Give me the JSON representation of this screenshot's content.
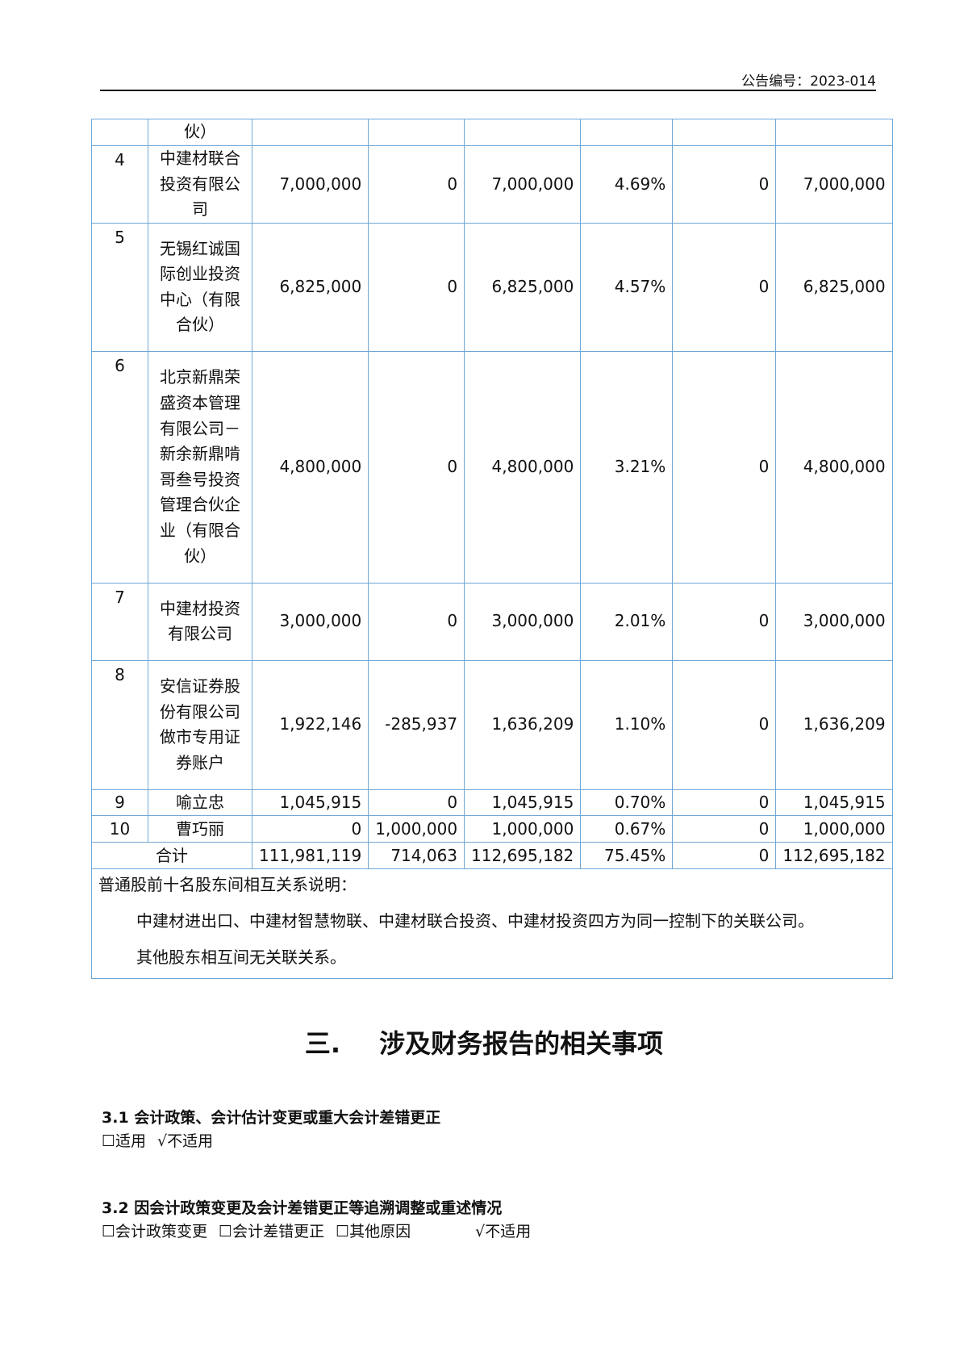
{
  "header": {
    "announcement_no": "公告编号：2023-014"
  },
  "table": {
    "rows": [
      {
        "no": "",
        "name": "伙）",
        "c1": "",
        "c2": "",
        "c3": "",
        "c4": "",
        "c5": "",
        "c6": ""
      },
      {
        "no": "4",
        "name": "中建材联合投资有限公司",
        "c1": "7,000,000",
        "c2": "0",
        "c3": "7,000,000",
        "c4": "4.69%",
        "c5": "0",
        "c6": "7,000,000"
      },
      {
        "no": "5",
        "name": "无锡红诚国际创业投资中心（有限合伙）",
        "c1": "6,825,000",
        "c2": "0",
        "c3": "6,825,000",
        "c4": "4.57%",
        "c5": "0",
        "c6": "6,825,000"
      },
      {
        "no": "6",
        "name": "北京新鼎荣盛资本管理有限公司－新余新鼎啃哥叁号投资管理合伙企业（有限合伙）",
        "c1": "4,800,000",
        "c2": "0",
        "c3": "4,800,000",
        "c4": "3.21%",
        "c5": "0",
        "c6": "4,800,000"
      },
      {
        "no": "7",
        "name": "中建材投资有限公司",
        "c1": "3,000,000",
        "c2": "0",
        "c3": "3,000,000",
        "c4": "2.01%",
        "c5": "0",
        "c6": "3,000,000"
      },
      {
        "no": "8",
        "name": "安信证券股份有限公司做市专用证券账户",
        "c1": "1,922,146",
        "c2": "-285,937",
        "c3": "1,636,209",
        "c4": "1.10%",
        "c5": "0",
        "c6": "1,636,209"
      },
      {
        "no": "9",
        "name": "喻立忠",
        "c1": "1,045,915",
        "c2": "0",
        "c3": "1,045,915",
        "c4": "0.70%",
        "c5": "0",
        "c6": "1,045,915"
      },
      {
        "no": "10",
        "name": "曹巧丽",
        "c1": "0",
        "c2": "1,000,000",
        "c3": "1,000,000",
        "c4": "0.67%",
        "c5": "0",
        "c6": "1,000,000"
      }
    ],
    "total": {
      "label": "合计",
      "c1": "111,981,119",
      "c2": "714,063",
      "c3": "112,695,182",
      "c4": "75.45%",
      "c5": "0",
      "c6": "112,695,182"
    },
    "note": {
      "title": "普通股前十名股东间相互关系说明：",
      "line1": "中建材进出口、中建材智慧物联、中建材联合投资、中建材投资四方为同一控制下的关联公司。",
      "line2": "其他股东相互间无关联关系。"
    }
  },
  "section": {
    "number": "三.",
    "title": "涉及财务报告的相关事项"
  },
  "s31": {
    "title": "3.1   会计政策、会计估计变更或重大会计差错更正",
    "options": [
      "☐适用",
      "√不适用"
    ]
  },
  "s32": {
    "title": "3.2   因会计政策变更及会计差错更正等追溯调整或重述情况",
    "options": [
      "☐会计政策变更",
      "☐会计差错更正",
      "☐其他原因",
      "√不适用"
    ]
  }
}
